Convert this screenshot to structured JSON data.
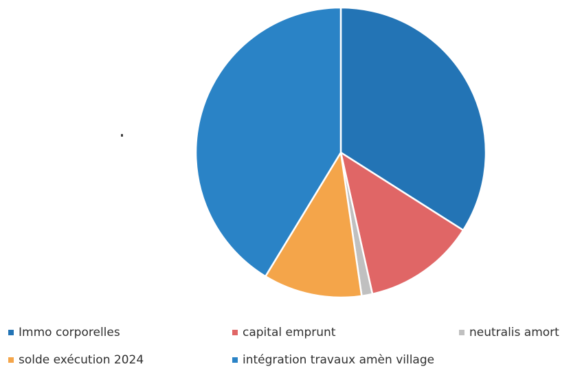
{
  "chart_data": {
    "type": "pie",
    "title": "",
    "start_angle_deg": 0,
    "direction": "clockwise",
    "slices": [
      {
        "label": "Immo corporelles",
        "value": 34.0,
        "color": "#2374b5"
      },
      {
        "label": "capital emprunt",
        "value": 12.5,
        "color": "#e06666"
      },
      {
        "label": "neutralis amort",
        "value": 1.2,
        "color": "#c0c0c0"
      },
      {
        "label": "solde exécution 2024",
        "value": 11.0,
        "color": "#f4a54a"
      },
      {
        "label": "intégration travaux amèn village",
        "value": 41.3,
        "color": "#2a83c6"
      }
    ],
    "legend_position": "bottom"
  }
}
